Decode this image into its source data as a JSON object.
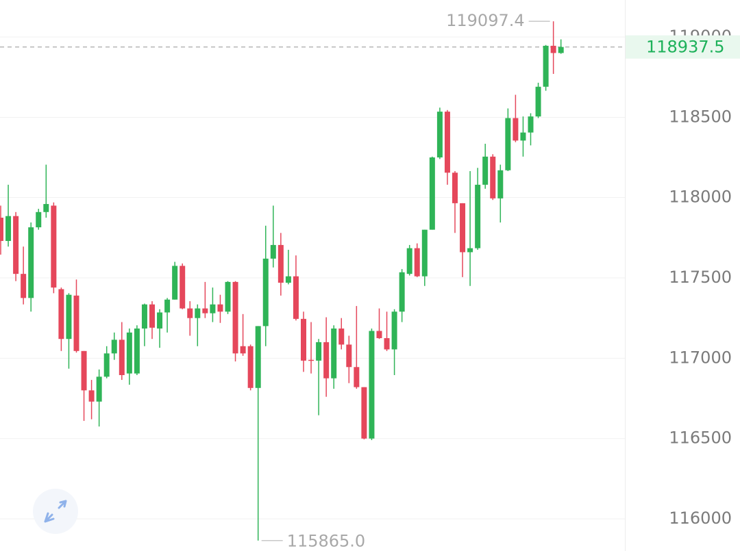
{
  "chart_data": {
    "type": "candlestick",
    "up_color": "#2fb457",
    "down_color": "#e5475b",
    "ylim": [
      115800,
      119230
    ],
    "yticks": [
      116000,
      116500,
      117000,
      117500,
      118000,
      118500,
      119000
    ],
    "grid": true,
    "open": [
      117875,
      117730,
      117885,
      117525,
      117375,
      117815,
      117910,
      117950,
      117430,
      117120,
      117390,
      117045,
      116800,
      116730,
      116885,
      117030,
      117115,
      116905,
      116905,
      117185,
      117335,
      117185,
      117285,
      117365,
      117575,
      117310,
      117250,
      117310,
      117280,
      117335,
      117290,
      117475,
      117075,
      117075,
      116815,
      117200,
      117620,
      117705,
      117470,
      117510,
      117245,
      116990,
      116985,
      117100,
      116875,
      117185,
      117085,
      116945,
      116820,
      116500,
      117170,
      117125,
      117055,
      117290,
      117525,
      117685,
      117510,
      117800,
      118250,
      118535,
      118155,
      117965,
      117660,
      117685,
      118080,
      118255,
      117995,
      118170,
      118495,
      118355,
      118405,
      118505,
      118690,
      118945,
      118900
    ],
    "high": [
      117950,
      118080,
      117910,
      117695,
      117845,
      117930,
      118205,
      117970,
      117440,
      117405,
      117490,
      117045,
      116865,
      116930,
      117075,
      117160,
      117225,
      117185,
      117205,
      117340,
      117355,
      117305,
      117375,
      117600,
      117590,
      117355,
      117335,
      117475,
      117440,
      117395,
      117480,
      117480,
      117275,
      117085,
      117200,
      117825,
      117950,
      117780,
      117675,
      117640,
      117290,
      117225,
      117120,
      117255,
      117205,
      117250,
      117140,
      117325,
      116820,
      117185,
      117310,
      117290,
      117305,
      117555,
      117705,
      117715,
      117800,
      118255,
      118560,
      118545,
      118165,
      117965,
      118165,
      118185,
      118335,
      118270,
      118205,
      118555,
      118640,
      118505,
      118525,
      118715,
      118950,
      119097.4,
      118985
    ],
    "low": [
      117645,
      117695,
      117480,
      117335,
      117290,
      117800,
      117875,
      117405,
      117045,
      116935,
      117035,
      116610,
      116620,
      116575,
      116875,
      116990,
      116865,
      116835,
      116895,
      117075,
      117120,
      117065,
      117160,
      117365,
      117305,
      117140,
      117075,
      117250,
      117225,
      117220,
      117275,
      116980,
      117015,
      116800,
      115865,
      117075,
      117565,
      117390,
      117460,
      117235,
      116915,
      116905,
      116645,
      116760,
      116810,
      117055,
      116845,
      116810,
      116495,
      116490,
      117120,
      117045,
      116895,
      117225,
      117515,
      117505,
      117450,
      117800,
      118240,
      118080,
      117780,
      117505,
      117450,
      117675,
      118055,
      117985,
      117845,
      118165,
      118345,
      118255,
      118325,
      118495,
      118665,
      118770,
      118895
    ],
    "close": [
      117730,
      117885,
      117525,
      117375,
      117815,
      117910,
      117960,
      117440,
      117120,
      117395,
      117045,
      116800,
      116730,
      116885,
      117030,
      117115,
      116895,
      117160,
      117185,
      117335,
      117190,
      117285,
      117365,
      117575,
      117310,
      117250,
      117310,
      117280,
      117335,
      117290,
      117475,
      117030,
      117030,
      116815,
      117200,
      117620,
      117705,
      117470,
      117510,
      117245,
      116985,
      116985,
      117100,
      116875,
      117185,
      117085,
      116945,
      116820,
      116500,
      117170,
      117125,
      117055,
      117290,
      117535,
      117685,
      117510,
      117800,
      118250,
      118535,
      118155,
      117965,
      117660,
      117685,
      118080,
      118255,
      117995,
      118170,
      118495,
      118355,
      118405,
      118505,
      118690,
      118945,
      118900,
      118937.5
    ],
    "annotations": [
      {
        "value": 119097.4,
        "label": "119097.4"
      },
      {
        "value": 115865,
        "label": "115865.0"
      }
    ],
    "last_price": {
      "value": 118937.5,
      "label": "118937.5"
    }
  }
}
